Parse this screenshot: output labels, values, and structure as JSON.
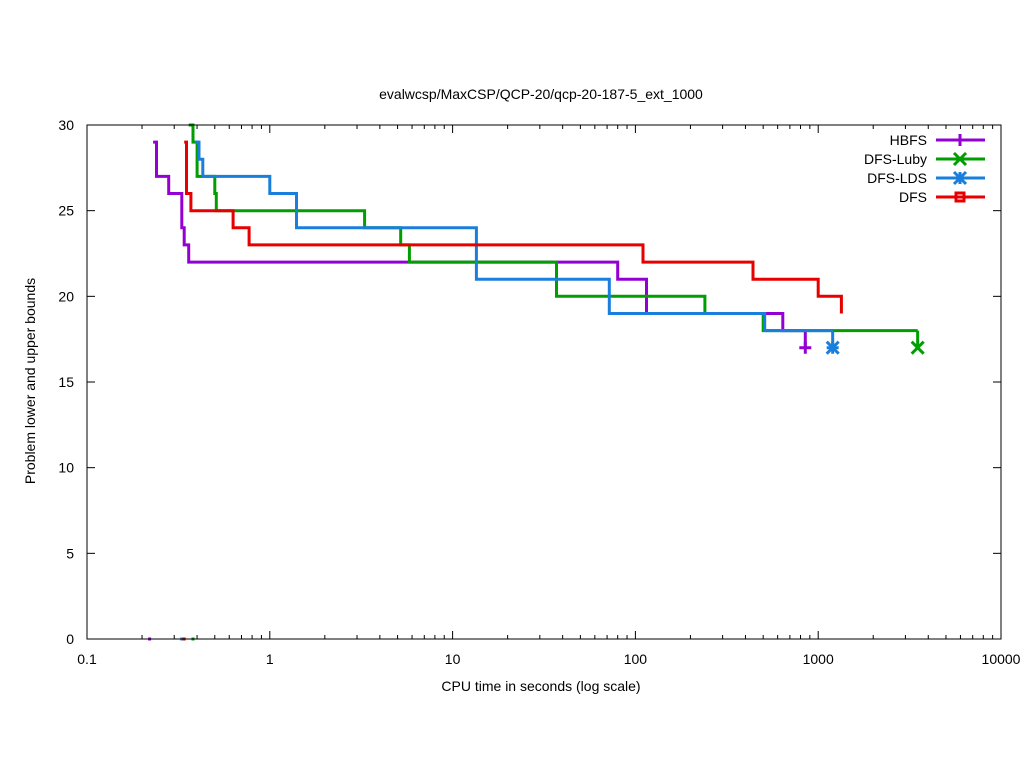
{
  "chart_data": {
    "type": "line",
    "title": "evalwcsp/MaxCSP/QCP-20/qcp-20-187-5_ext_1000",
    "xlabel": "CPU time in seconds (log scale)",
    "ylabel": "Problem lower and upper bounds",
    "xscale": "log",
    "xlim": [
      0.1,
      10000
    ],
    "ylim": [
      0,
      30
    ],
    "xticks": [
      0.1,
      1,
      10,
      100,
      1000,
      10000
    ],
    "xtick_labels": [
      "0.1",
      "1",
      "10",
      "100",
      "1000",
      "10000"
    ],
    "yticks": [
      0,
      5,
      10,
      15,
      20,
      25,
      30
    ],
    "ytick_labels": [
      "0",
      "5",
      "10",
      "15",
      "20",
      "25",
      "30"
    ],
    "legend_position": "top-right",
    "series": [
      {
        "name": "HBFS",
        "color": "#9400d3",
        "marker": "plus",
        "upper": [
          [
            0.23,
            29
          ],
          [
            0.24,
            27
          ],
          [
            0.28,
            26
          ],
          [
            0.33,
            24
          ],
          [
            0.34,
            23
          ],
          [
            0.36,
            22
          ],
          [
            6.0,
            22
          ],
          [
            80,
            21
          ],
          [
            115,
            19
          ],
          [
            500,
            19
          ],
          [
            640,
            18
          ],
          [
            850,
            18
          ]
        ],
        "lower": [
          [
            0.22,
            0
          ],
          [
            850,
            17
          ]
        ],
        "end_marker": [
          850,
          17
        ]
      },
      {
        "name": "DFS-Luby",
        "color": "#009e00",
        "marker": "x",
        "upper": [
          [
            0.36,
            30
          ],
          [
            0.38,
            29
          ],
          [
            0.4,
            27
          ],
          [
            0.5,
            26
          ],
          [
            0.51,
            25
          ],
          [
            3.3,
            24
          ],
          [
            5.2,
            23
          ],
          [
            5.8,
            22
          ],
          [
            37,
            20
          ],
          [
            240,
            19
          ],
          [
            500,
            18
          ],
          [
            3500,
            18
          ]
        ],
        "lower": [
          [
            0.38,
            0
          ],
          [
            3500,
            17
          ]
        ],
        "end_marker": [
          3500,
          17
        ]
      },
      {
        "name": "DFS-LDS",
        "color": "#1a7fdc",
        "marker": "star",
        "upper": [
          [
            0.39,
            29
          ],
          [
            0.41,
            28
          ],
          [
            0.43,
            27
          ],
          [
            1.0,
            26
          ],
          [
            1.4,
            24
          ],
          [
            13.5,
            21
          ],
          [
            72,
            19
          ],
          [
            510,
            18
          ],
          [
            1200,
            18
          ]
        ],
        "lower": [
          [
            0.33,
            0
          ],
          [
            1200,
            17
          ]
        ],
        "end_marker": [
          1200,
          17
        ]
      },
      {
        "name": "DFS",
        "color": "#e60000",
        "marker": "square",
        "upper": [
          [
            0.34,
            29
          ],
          [
            0.35,
            26
          ],
          [
            0.37,
            25
          ],
          [
            0.63,
            24
          ],
          [
            0.77,
            23
          ],
          [
            110,
            22
          ],
          [
            440,
            21
          ],
          [
            1000,
            20
          ],
          [
            1340,
            19
          ]
        ],
        "lower": [
          [
            0.34,
            0
          ]
        ]
      }
    ]
  }
}
